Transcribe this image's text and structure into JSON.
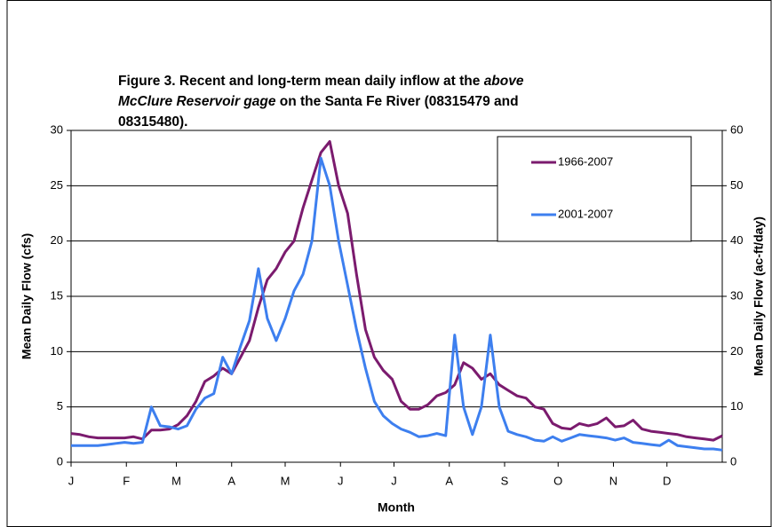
{
  "chart_data": {
    "type": "line",
    "title": [
      [
        {
          "text": "Figure 3.  Recent and long-term mean daily inflow at the ",
          "italic": false
        },
        {
          "text": "above",
          "italic": true
        }
      ],
      [
        {
          "text": "McClure Reservoir gage",
          "italic": true
        },
        {
          "text": "  on the Santa Fe River (08315479 and",
          "italic": false
        }
      ],
      [
        {
          "text": "08315480).",
          "italic": false
        }
      ]
    ],
    "x_label": "Month",
    "y_label": "Mean Daily Flow (cfs)",
    "y2_label": "Mean Daily Flow (ac-ft/day)",
    "xlim": [
      1,
      366
    ],
    "xticks": [
      {
        "value": 1,
        "label": "J"
      },
      {
        "value": 32,
        "label": "F"
      },
      {
        "value": 60,
        "label": "M"
      },
      {
        "value": 91,
        "label": "A"
      },
      {
        "value": 121,
        "label": "M"
      },
      {
        "value": 152,
        "label": "J"
      },
      {
        "value": 182,
        "label": "J"
      },
      {
        "value": 213,
        "label": "A"
      },
      {
        "value": 244,
        "label": "S"
      },
      {
        "value": 274,
        "label": "O"
      },
      {
        "value": 305,
        "label": "N"
      },
      {
        "value": 335,
        "label": "D"
      }
    ],
    "ylim": [
      0,
      30
    ],
    "yticks": [
      0,
      5,
      10,
      15,
      20,
      25,
      30
    ],
    "y2lim": [
      0,
      60
    ],
    "y2ticks": [
      0,
      10,
      20,
      30,
      40,
      50,
      60
    ],
    "grid": true,
    "x": [
      1,
      6,
      11,
      16,
      21,
      26,
      31,
      36,
      41,
      46,
      51,
      56,
      61,
      66,
      71,
      76,
      81,
      86,
      91,
      96,
      101,
      106,
      111,
      116,
      121,
      126,
      131,
      136,
      141,
      146,
      151,
      156,
      161,
      166,
      171,
      176,
      181,
      186,
      191,
      196,
      201,
      206,
      211,
      216,
      221,
      226,
      231,
      236,
      241,
      246,
      251,
      256,
      261,
      266,
      271,
      276,
      281,
      286,
      291,
      296,
      301,
      306,
      311,
      316,
      321,
      326,
      331,
      336,
      341,
      346,
      351,
      356,
      361,
      366
    ],
    "series": [
      {
        "name": "1966-2007",
        "color": "#7b1b6e",
        "values": [
          2.6,
          2.5,
          2.3,
          2.2,
          2.2,
          2.2,
          2.2,
          2.3,
          2.1,
          2.9,
          2.9,
          3.0,
          3.4,
          4.2,
          5.5,
          7.3,
          7.8,
          8.5,
          8.0,
          9.5,
          11.0,
          14.0,
          16.5,
          17.5,
          19.0,
          20.0,
          23.0,
          25.5,
          28.0,
          29.0,
          25.0,
          22.5,
          17.0,
          12.0,
          9.5,
          8.3,
          7.5,
          5.5,
          4.8,
          4.8,
          5.2,
          6.0,
          6.3,
          7.0,
          9.0,
          8.5,
          7.5,
          8.0,
          7.0,
          6.5,
          6.0,
          5.8,
          5.0,
          4.8,
          3.5,
          3.1,
          3.0,
          3.5,
          3.3,
          3.5,
          4.0,
          3.2,
          3.3,
          3.8,
          3.0,
          2.8,
          2.7,
          2.6,
          2.5,
          2.3,
          2.2,
          2.1,
          2.0,
          2.4
        ]
      },
      {
        "name": "2001-2007",
        "color": "#3d7fef",
        "values": [
          1.5,
          1.5,
          1.5,
          1.5,
          1.6,
          1.7,
          1.8,
          1.7,
          1.8,
          5.0,
          3.3,
          3.2,
          3.0,
          3.3,
          4.8,
          5.8,
          6.2,
          9.5,
          8.0,
          10.5,
          12.8,
          17.5,
          13.0,
          11.0,
          13.0,
          15.5,
          17.0,
          20.0,
          27.5,
          25.0,
          20.0,
          16.0,
          12.0,
          8.5,
          5.5,
          4.2,
          3.5,
          3.0,
          2.7,
          2.3,
          2.4,
          2.6,
          2.4,
          11.5,
          5.0,
          2.5,
          5.0,
          11.5,
          5.0,
          2.8,
          2.5,
          2.3,
          2.0,
          1.9,
          2.3,
          1.9,
          2.2,
          2.5,
          2.4,
          2.3,
          2.2,
          2.0,
          2.2,
          1.8,
          1.7,
          1.6,
          1.5,
          2.0,
          1.5,
          1.4,
          1.3,
          1.2,
          1.2,
          1.1
        ]
      }
    ]
  }
}
